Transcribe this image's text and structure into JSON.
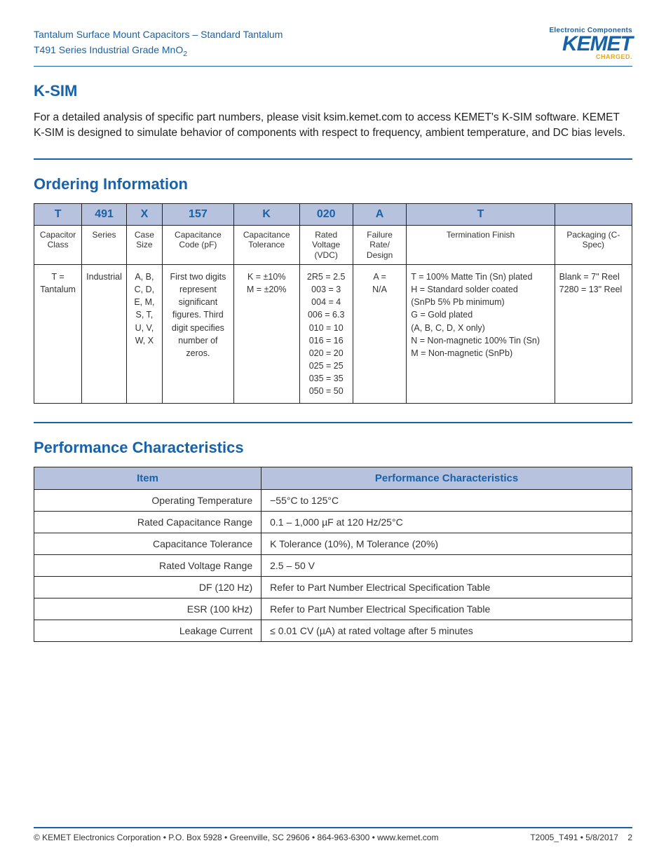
{
  "header": {
    "line1": "Tantalum Surface Mount Capacitors – Standard Tantalum",
    "line2_pre": "T491 Series Industrial Grade MnO",
    "line2_sub": "2",
    "logo_tag": "Electronic Components",
    "logo_main": "KEMET",
    "logo_sub": "CHARGED."
  },
  "ksim": {
    "title": "K-SIM",
    "body": "For a detailed analysis of specific part numbers, please visit ksim.kemet.com to access KEMET's K-SIM software. KEMET K-SIM is designed to simulate behavior of components with respect to frequency, ambient temperature, and DC bias levels."
  },
  "ordering": {
    "title": "Ordering Information",
    "codes": [
      "T",
      "491",
      "X",
      "157",
      "K",
      "020",
      "A",
      "T",
      ""
    ],
    "labels": [
      "Capacitor Class",
      "Series",
      "Case Size",
      "Capacitance Code (pF)",
      "Capacitance Tolerance",
      "Rated Voltage (VDC)",
      "Failure Rate/ Design",
      "Termination Finish",
      "Packaging (C-Spec)"
    ],
    "values": {
      "c0": "T = Tantalum",
      "c1": "Industrial",
      "c2": "A, B,\nC, D,\nE, M,\nS, T,\nU, V,\nW, X",
      "c3": "First two digits represent significant figures. Third digit specifies number of zeros.",
      "c4": "K = ±10%\nM = ±20%",
      "c5": "2R5 = 2.5\n003 = 3\n004 = 4\n006 = 6.3\n010 = 10\n016 = 16\n020 = 20\n025 = 25\n035 = 35\n050 = 50",
      "c6": "A =\nN/A",
      "c7": "T = 100% Matte Tin (Sn) plated\nH = Standard solder coated\n(SnPb 5% Pb minimum)\nG = Gold plated\n(A, B, C, D, X only)\nN = Non-magnetic 100% Tin (Sn)\nM = Non-magnetic (SnPb)",
      "c8": "Blank = 7\" Reel\n7280 = 13\" Reel"
    },
    "col_widths": [
      "8%",
      "7%",
      "6%",
      "12%",
      "11%",
      "9%",
      "9%",
      "25%",
      "13%"
    ]
  },
  "performance": {
    "title": "Performance Characteristics",
    "headers": [
      "Item",
      "Performance Characteristics"
    ],
    "rows": [
      [
        "Operating Temperature",
        "−55°C to 125°C"
      ],
      [
        "Rated Capacitance Range",
        "0.1 – 1,000 µF at 120 Hz/25°C"
      ],
      [
        "Capacitance Tolerance",
        "K Tolerance (10%), M Tolerance (20%)"
      ],
      [
        "Rated Voltage Range",
        "2.5 – 50 V"
      ],
      [
        "DF (120 Hz)",
        "Refer to Part Number Electrical Specification Table"
      ],
      [
        "ESR (100 kHz)",
        "Refer to Part Number Electrical Specification Table"
      ],
      [
        "Leakage Current",
        "≤ 0.01 CV (µA) at rated voltage after 5 minutes"
      ]
    ]
  },
  "footer": {
    "left": "© KEMET Electronics Corporation • P.O. Box 5928 • Greenville, SC 29606 • 864-963-6300 • www.kemet.com",
    "right": "T2005_T491 • 5/8/2017",
    "page": "2"
  },
  "colors": {
    "brand_blue": "#1862a8",
    "header_bg": "#b7c3de",
    "accent_gold": "#e6a817"
  }
}
